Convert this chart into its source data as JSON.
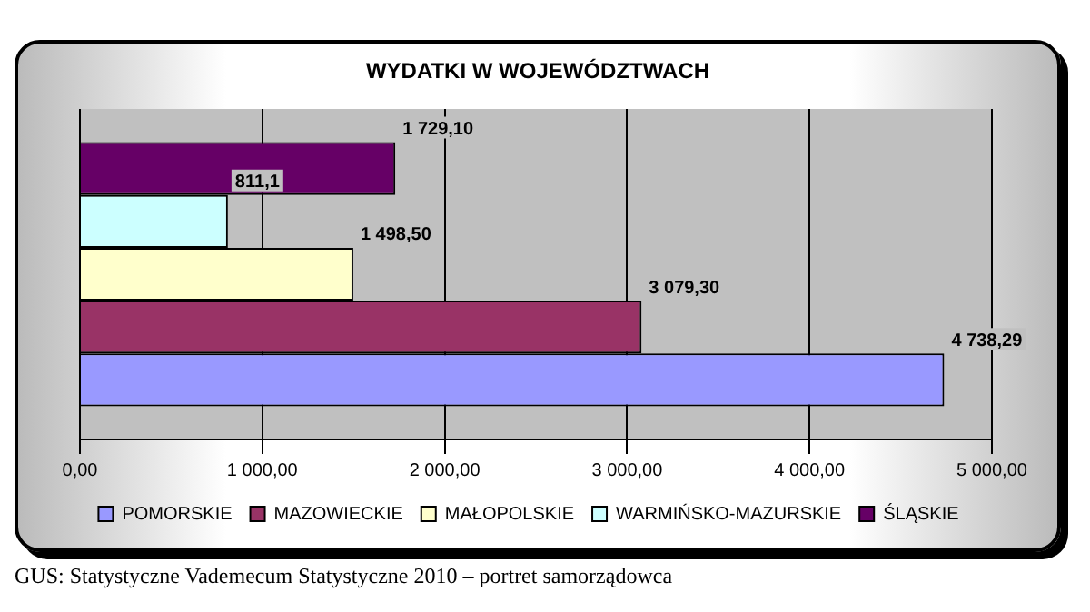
{
  "chart_data": {
    "type": "bar",
    "orientation": "horizontal",
    "title": "WYDATKI W WOJEWÓDZTWACH",
    "categories": [
      null
    ],
    "series": [
      {
        "name": "POMORSKIE",
        "color": "#9999ff",
        "values": [
          4738.29
        ],
        "value_labels": [
          "4 738,29"
        ]
      },
      {
        "name": "MAZOWIECKIE",
        "color": "#993366",
        "values": [
          3079.3
        ],
        "value_labels": [
          "3 079,30"
        ]
      },
      {
        "name": "MAŁOPOLSKIE",
        "color": "#ffffcc",
        "values": [
          1498.5
        ],
        "value_labels": [
          "1 498,50"
        ]
      },
      {
        "name": "WARMIŃSKO-MAZURSKIE",
        "color": "#ccffff",
        "values": [
          811.1
        ],
        "value_labels": [
          "811,1"
        ]
      },
      {
        "name": "ŚLĄSKIE",
        "color": "#660066",
        "values": [
          1729.1
        ],
        "value_labels": [
          "1 729,10"
        ]
      }
    ],
    "xlim": [
      0,
      5000
    ],
    "xticks": [
      {
        "value": 0,
        "label": "0,00"
      },
      {
        "value": 1000,
        "label": "1 000,00"
      },
      {
        "value": 2000,
        "label": "2 000,00"
      },
      {
        "value": 3000,
        "label": "3 000,00"
      },
      {
        "value": 4000,
        "label": "4 000,00"
      },
      {
        "value": 5000,
        "label": "5 000,00"
      }
    ],
    "grid": "x",
    "legend": "bottom",
    "annotations": [
      "GUS: Statystyczne Vademecum Statystyczne 2010 – portret samorządowca"
    ]
  }
}
